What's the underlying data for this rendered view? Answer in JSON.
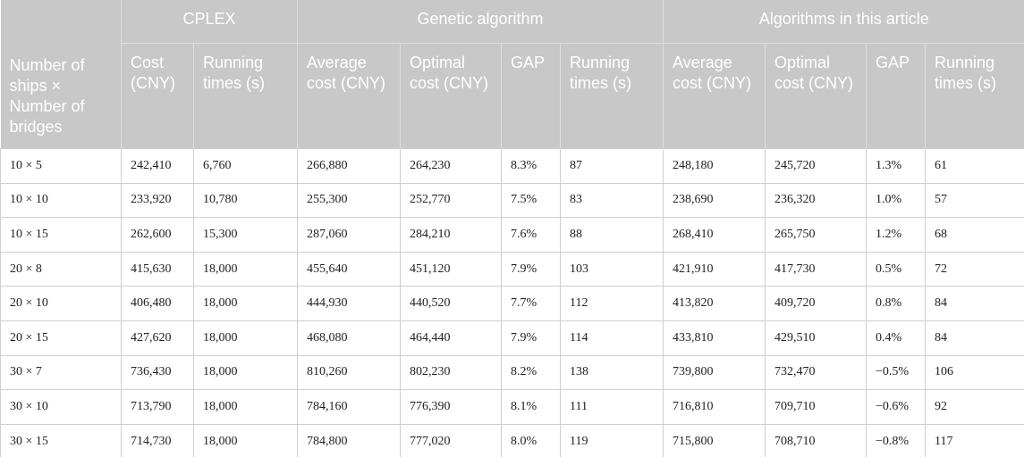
{
  "header": {
    "first": "Number of ships × Number of bridges",
    "groups": [
      "CPLEX",
      "Genetic algorithm",
      "Algorithms in this article"
    ],
    "columns": [
      "Cost (CNY)",
      "Running times (s)",
      "Average cost (CNY)",
      "Optimal cost (CNY)",
      "GAP",
      "Running times (s)",
      "Average cost (CNY)",
      "Optimal cost (CNY)",
      "GAP",
      "Running times (s)"
    ]
  },
  "table": {
    "rows": [
      [
        "10 × 5",
        "242,410",
        "6,760",
        "266,880",
        "264,230",
        "8.3%",
        "87",
        "248,180",
        "245,720",
        "1.3%",
        "61"
      ],
      [
        "10 × 10",
        "233,920",
        "10,780",
        "255,300",
        "252,770",
        "7.5%",
        "83",
        "238,690",
        "236,320",
        "1.0%",
        "57"
      ],
      [
        "10 × 15",
        "262,600",
        "15,300",
        "287,060",
        "284,210",
        "7.6%",
        "88",
        "268,410",
        "265,750",
        "1.2%",
        "68"
      ],
      [
        "20 × 8",
        "415,630",
        "18,000",
        "455,640",
        "451,120",
        "7.9%",
        "103",
        "421,910",
        "417,730",
        "0.5%",
        "72"
      ],
      [
        "20 × 10",
        "406,480",
        "18,000",
        "444,930",
        "440,520",
        "7.7%",
        "112",
        "413,820",
        "409,720",
        "0.8%",
        "84"
      ],
      [
        "20 × 15",
        "427,620",
        "18,000",
        "468,080",
        "464,440",
        "7.9%",
        "114",
        "433,810",
        "429,510",
        "0.4%",
        "84"
      ],
      [
        "30 × 7",
        "736,430",
        "18,000",
        "810,260",
        "802,230",
        "8.2%",
        "138",
        "739,800",
        "732,470",
        "−0.5%",
        "106"
      ],
      [
        "30 × 10",
        "713,790",
        "18,000",
        "784,160",
        "776,390",
        "8.1%",
        "111",
        "716,810",
        "709,710",
        "−0.6%",
        "92"
      ],
      [
        "30 × 15",
        "714,730",
        "18,000",
        "784,800",
        "777,020",
        "8.0%",
        "119",
        "715,800",
        "708,710",
        "−0.8%",
        "117"
      ]
    ]
  }
}
